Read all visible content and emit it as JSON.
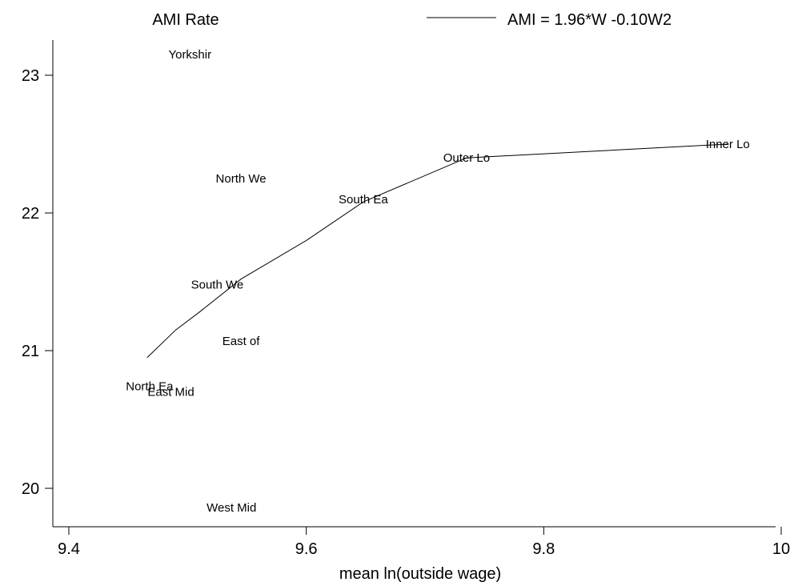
{
  "chart_data": {
    "type": "scatter",
    "title": "AMI Rate",
    "xlabel": "mean ln(outside wage)",
    "ylabel": "",
    "xlim": [
      9.4,
      10.0
    ],
    "ylim": [
      19.7,
      23.2
    ],
    "xticks": [
      9.4,
      9.6,
      9.8,
      10.0
    ],
    "xtick_labels": [
      "9.4",
      "9.6",
      "9.8",
      "10"
    ],
    "yticks": [
      20,
      21,
      22,
      23
    ],
    "ytick_labels": [
      "20",
      "21",
      "22",
      "23"
    ],
    "grid": false,
    "legend": {
      "position": "top-right",
      "entry": "AMI =  1.96*W -0.10W2"
    },
    "points": [
      {
        "label": "Yorkshir",
        "x": 9.502,
        "y": 23.15
      },
      {
        "label": "Inner Lo",
        "x": 9.955,
        "y": 22.5
      },
      {
        "label": "Outer Lo",
        "x": 9.735,
        "y": 22.4
      },
      {
        "label": "North We",
        "x": 9.545,
        "y": 22.25
      },
      {
        "label": "South Ea",
        "x": 9.648,
        "y": 22.1
      },
      {
        "label": "South We",
        "x": 9.525,
        "y": 21.48
      },
      {
        "label": "East of",
        "x": 9.545,
        "y": 21.07
      },
      {
        "label": "North Ea",
        "x": 9.468,
        "y": 20.74
      },
      {
        "label": "East Mid",
        "x": 9.486,
        "y": 20.7
      },
      {
        "label": "West Mid",
        "x": 9.537,
        "y": 19.86
      }
    ],
    "fit_line": {
      "name": "AMI =  1.96*W -0.10W2",
      "points": [
        {
          "x": 9.466,
          "y": 20.95
        },
        {
          "x": 9.49,
          "y": 21.15
        },
        {
          "x": 9.51,
          "y": 21.28
        },
        {
          "x": 9.545,
          "y": 21.52
        },
        {
          "x": 9.6,
          "y": 21.8
        },
        {
          "x": 9.648,
          "y": 22.08
        },
        {
          "x": 9.735,
          "y": 22.4
        },
        {
          "x": 9.955,
          "y": 22.5
        }
      ]
    }
  }
}
